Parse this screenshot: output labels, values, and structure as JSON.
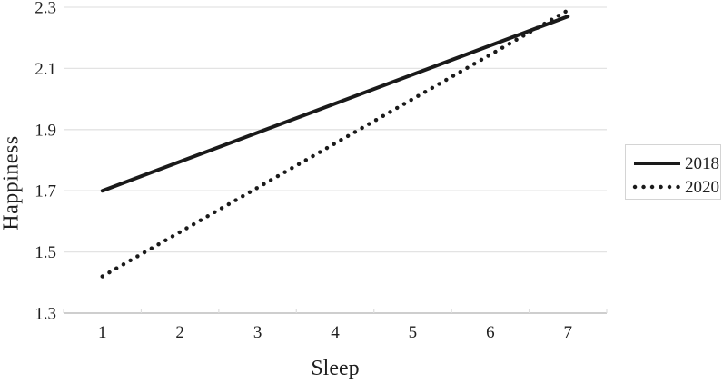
{
  "chart_data": {
    "type": "line",
    "title": "",
    "xlabel": "Sleep",
    "ylabel": "Happiness",
    "x": [
      1,
      2,
      3,
      4,
      5,
      6,
      7
    ],
    "xtick_labels": [
      "1",
      "2",
      "3",
      "4",
      "5",
      "6",
      "7"
    ],
    "ylim": [
      1.3,
      2.3
    ],
    "yticks": [
      1.3,
      1.5,
      1.7,
      1.9,
      2.1,
      2.3
    ],
    "ytick_labels": [
      "1.3",
      "1.5",
      "1.7",
      "1.9",
      "2.1",
      "2.3"
    ],
    "grid": "horizontal",
    "legend_position": "right",
    "series": [
      {
        "name": "2018",
        "style": "solid",
        "color": "#1a1a1a",
        "values": [
          1.7,
          1.795,
          1.89,
          1.985,
          2.08,
          2.175,
          2.27
        ]
      },
      {
        "name": "2020",
        "style": "dotted",
        "color": "#1a1a1a",
        "values": [
          1.42,
          1.565,
          1.71,
          1.855,
          2.0,
          2.145,
          2.29
        ]
      }
    ],
    "colors": {
      "gridline": "#e3e3e3",
      "axis_line": "#bdbdbd",
      "tick_mark": "#dedede",
      "text": "#1f1f1f",
      "legend_border": "#d4d4d4",
      "background": "#ffffff"
    }
  }
}
